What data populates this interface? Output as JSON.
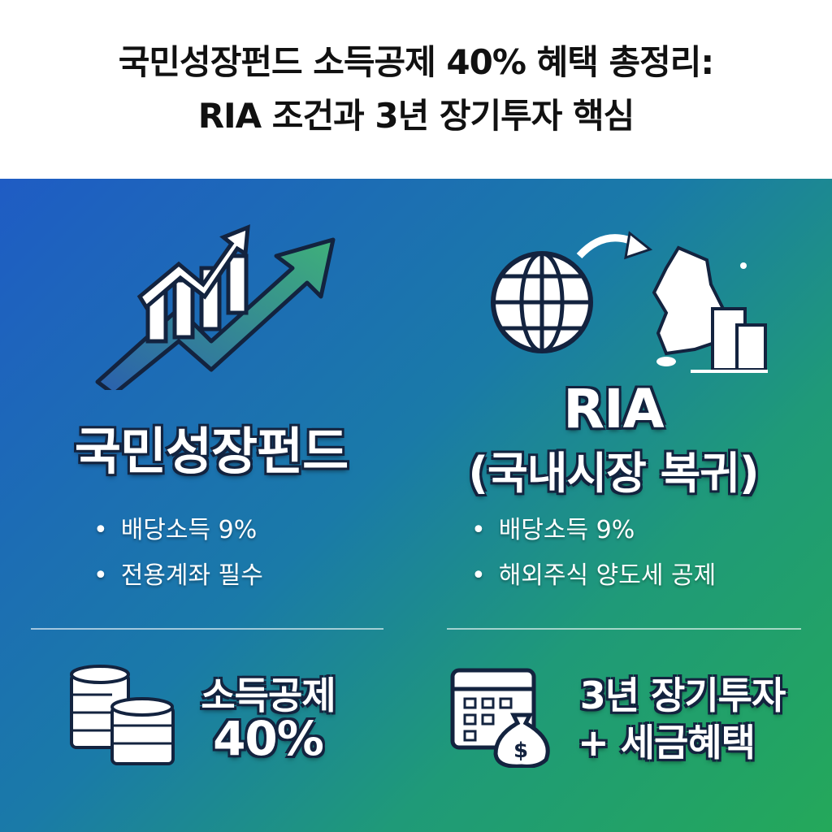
{
  "header": {
    "title_line1": "국민성장펀드 소득공제 40% 혜택 총정리:",
    "title_line2": "RIA 조건과 3년 장기투자 핵심"
  },
  "left": {
    "heading": "국민성장펀드",
    "bullets": [
      "배당소득 9%",
      "전용계좌 필수"
    ],
    "bottom_line1": "소득공제",
    "bottom_line2": "40%"
  },
  "right": {
    "heading": "RIA",
    "subheading": "(국내시장 복귀)",
    "bullets": [
      "배당소득 9%",
      "해외주식 양도세 공제"
    ],
    "bottom_line1": "3년 장기투자",
    "bottom_line2": "+ 세금혜택"
  },
  "icons": {
    "chart": "growth-chart-arrow-icon",
    "globe": "globe-icon",
    "map": "korea-map-icon",
    "building": "building-icon",
    "coins": "coin-stack-icon",
    "calendar": "calendar-icon",
    "moneybag": "money-bag-icon",
    "bullet": "•"
  },
  "colors": {
    "gradient_start": "#1f5cc4",
    "gradient_end": "#24a85a",
    "text_outline": "#13233f"
  }
}
